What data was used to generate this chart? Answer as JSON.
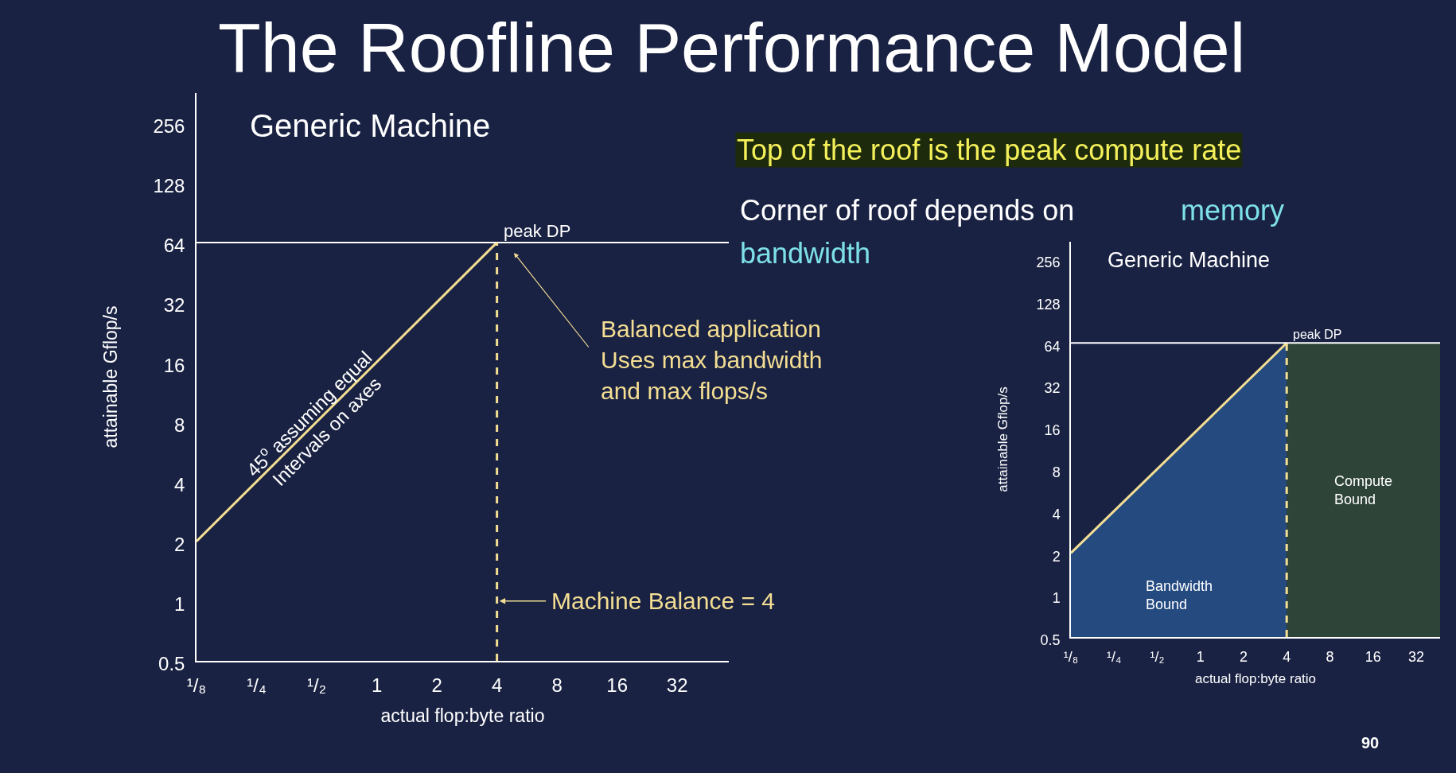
{
  "chart_data": [
    {
      "type": "line",
      "title": "The Roofline Performance Model",
      "xlabel": "actual flop:byte ratio",
      "ylabel": "attainable Gflop/s",
      "log": "xy",
      "grid": false,
      "legend": false,
      "xlim": [
        0.125,
        58
      ],
      "ylim": [
        0.5,
        362
      ],
      "xticks": [
        {
          "value": 0.125,
          "label": "¹/₈"
        },
        {
          "value": 0.25,
          "label": "¹/₄"
        },
        {
          "value": 0.5,
          "label": "¹/₂"
        },
        1,
        2,
        4,
        8,
        16,
        32
      ],
      "yticks": [
        0.5,
        1,
        2,
        4,
        8,
        16,
        32,
        64,
        128,
        256
      ],
      "series": [
        {
          "color": "#f3de93",
          "x": [
            0.125,
            4
          ],
          "values": [
            2,
            64
          ]
        }
      ],
      "ref_lines": [
        {
          "axis": "y",
          "value": 64,
          "label": "peak DP",
          "color": "#ffffff",
          "line_style": "solid"
        },
        {
          "axis": "x",
          "value": 4,
          "label": "Machine Balance = 4",
          "color": "#f3de93",
          "line_style": "dashed"
        }
      ],
      "annotations": [
        "Generic Machine",
        {
          "text": "45$^{o}$ assuming equal\nIntervals on axes",
          "x": 0.5,
          "y": 8
        },
        "Balanced application\nUses max bandwidth\nand max flops/s",
        "Top of the roof is the peak compute rate",
        "Corner of roof depends on",
        "memory bandwidth",
        "90"
      ]
    },
    {
      "type": "area",
      "xlabel": "actual flop:byte ratio",
      "ylabel": "attainable Gflop/s",
      "log": "xy",
      "grid": false,
      "legend": false,
      "xlim": [
        0.125,
        47
      ],
      "ylim": [
        0.5,
        340
      ],
      "xticks": [
        {
          "value": 0.125,
          "label": "¹/₈"
        },
        {
          "value": 0.25,
          "label": "¹/₄"
        },
        {
          "value": 0.5,
          "label": "¹/₂"
        },
        1,
        2,
        4,
        8,
        16,
        32
      ],
      "yticks": [
        0.5,
        1,
        2,
        4,
        8,
        16,
        32,
        64,
        128,
        256
      ],
      "series": [
        {
          "name": "Bandwidth Bound",
          "color": "#244a80",
          "x": [
            0.125,
            4
          ],
          "values": [
            2,
            64
          ]
        },
        {
          "name": "Compute Bound",
          "color": "#2e4438",
          "x": [
            4,
            47
          ],
          "values": [
            64,
            64
          ]
        },
        {
          "type": "line",
          "color": "#f3de93",
          "x": [
            0.125,
            4
          ],
          "values": [
            2,
            64
          ]
        }
      ],
      "ref_lines": [
        {
          "axis": "y",
          "value": 64,
          "label": "peak DP",
          "color": "#ffffff",
          "line_style": "solid"
        },
        {
          "axis": "x",
          "value": 4,
          "color": "#f3de93",
          "line_style": "dashed"
        }
      ],
      "annotations": [
        "Generic Machine"
      ]
    }
  ]
}
